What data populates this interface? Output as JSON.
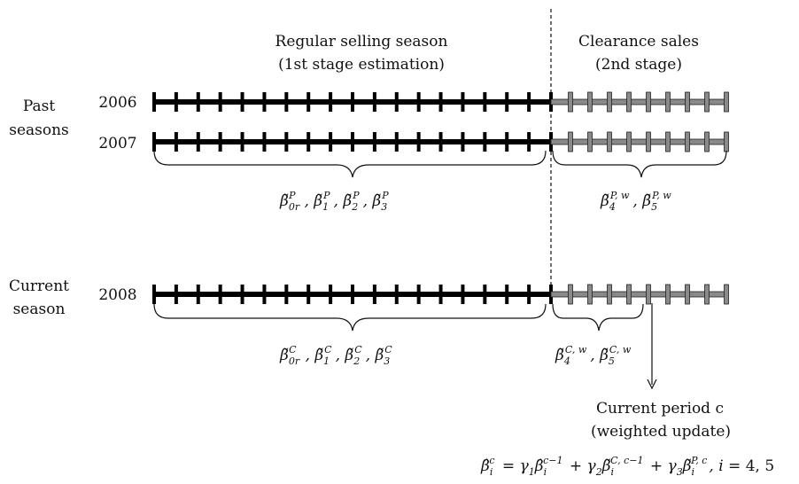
{
  "header": {
    "regular_line1": "Regular selling season",
    "regular_line2": "(1st stage estimation)",
    "clearance_line1": "Clearance sales",
    "clearance_line2": "(2nd stage)"
  },
  "groups": {
    "past_line1": "Past",
    "past_line2": "seasons",
    "current_line1": "Current",
    "current_line2": "season"
  },
  "timelines": [
    {
      "year": "2006",
      "regular_ticks": 18,
      "clearance_ticks": 9
    },
    {
      "year": "2007",
      "regular_ticks": 18,
      "clearance_ticks": 9
    },
    {
      "year": "2008",
      "regular_ticks": 18,
      "clearance_ticks": 9
    }
  ],
  "colors": {
    "regular": "#000000",
    "clearance": "#7f7f7f",
    "clearance_fill": "#8a8a8a"
  },
  "current_period": {
    "line1": "Current period c",
    "line2": "(weighted update)"
  },
  "params": {
    "past_regular": "β̃0r P, β̃1 P, β̃2 P, β̃3 P",
    "past_clearance": "β̃4 P,w, β̃5 P,w",
    "current_regular": "β̃0r C, β̃1 C, β̃2 C, β̃3 C",
    "current_clearance": "β̃4 C,w, β̃5 C,w",
    "update_formula": "β̂i c = γ1 β̂i c−1 + γ2 β̃i C,c−1 + γ3 β̃i P,c, i = 4, 5"
  }
}
